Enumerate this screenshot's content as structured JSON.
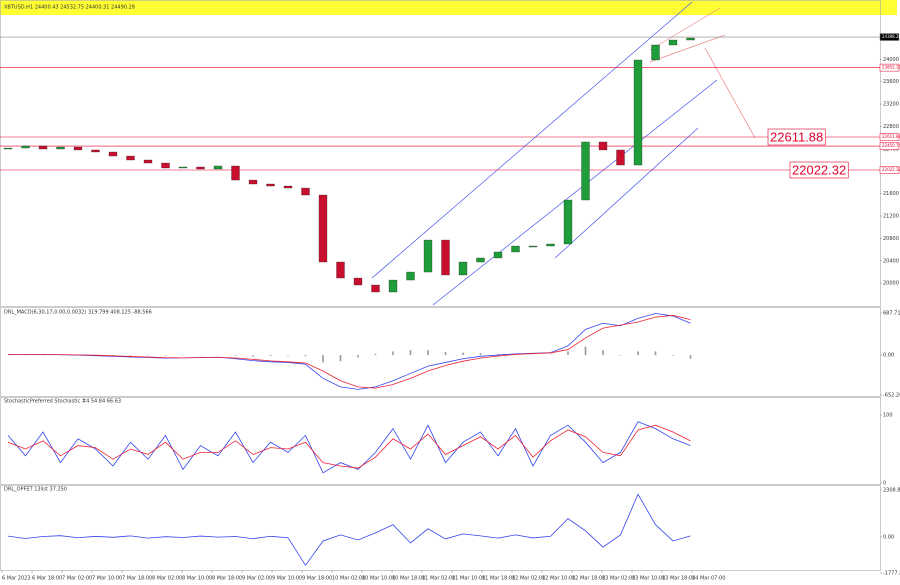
{
  "time_axis": [
    "6 Mar 2023",
    "6 Mar 18:00",
    "7 Mar 02:00",
    "7 Mar 10:00",
    "7 Mar 18:00",
    "8 Mar 02:00",
    "8 Mar 10:00",
    "8 Mar 18:00",
    "9 Mar 02:00",
    "9 Mar 10:00",
    "9 Mar 18:00",
    "10 Mar 02:00",
    "10 Mar 10:00",
    "10 Mar 18:00",
    "11 Mar 02:00",
    "11 Mar 10:00",
    "11 Mar 18:00",
    "12 Mar 02:00",
    "12 Mar 10:00",
    "12 Mar 18:00",
    "13 Mar 02:00",
    "13 Mar 10:00",
    "13 Mar 18:00",
    "14 Mar 07:00"
  ],
  "chart_data": [
    {
      "type": "candlestick",
      "title": "XBTUSD,H1 24400.43 24532.75 24400.31 24490.28",
      "open": [
        22400,
        22415,
        22451,
        22397,
        22433,
        22380,
        22344,
        22272,
        22201,
        22147,
        22058,
        22076,
        22040,
        22094,
        21843,
        21772,
        21736,
        21700,
        21575,
        20378,
        20092,
        19967,
        19842,
        20056,
        20199,
        20771,
        20146,
        20378,
        20450,
        20557,
        20664,
        20664,
        20700,
        21486,
        22523,
        22380,
        22111,
        23988,
        24256,
        24345
      ],
      "close": [
        22415,
        22451,
        22397,
        22433,
        22380,
        22344,
        22272,
        22201,
        22147,
        22058,
        22076,
        22040,
        22094,
        21843,
        21772,
        21736,
        21700,
        21575,
        20378,
        20092,
        19967,
        19842,
        20056,
        20199,
        20771,
        20146,
        20378,
        20450,
        20557,
        20664,
        20664,
        20700,
        21486,
        22523,
        22380,
        22111,
        23988,
        24256,
        24345,
        24381
      ],
      "up_color": "#1f9d3a",
      "down_color": "#c8102e",
      "ylim": [
        19610,
        24792
      ],
      "yticks": [
        20000,
        20400,
        20800,
        21200,
        21600,
        22000,
        22400,
        22800,
        23200,
        23600,
        24000,
        24400
      ],
      "levels": [
        24398.28,
        23852.19,
        22611.88,
        22450.74,
        22022.32
      ],
      "level_colors": [
        "#888888",
        "#e4002b",
        "#e4002b",
        "#e4002b",
        "#e4002b"
      ],
      "callouts": [
        22611.88,
        22022.32
      ]
    },
    {
      "type": "line",
      "title": "DRL_MACD(6,30,17,0.00,0.0032) 319.799 408.125 -88.566",
      "ylim": [
        -652.264,
        687.712
      ],
      "yticks": [
        687.712,
        {
          "value": 0,
          "label": "0.00"
        },
        -652.264
      ],
      "series": [
        {
          "style": "bar",
          "color": "#999999",
          "values": [
            -2,
            0,
            -2,
            -3,
            -4,
            -8,
            -8,
            -8,
            -8,
            -8,
            0,
            2,
            3,
            -12,
            -20,
            -15,
            -10,
            -20,
            -120,
            -100,
            -40,
            20,
            60,
            80,
            80,
            50,
            40,
            30,
            15,
            10,
            5,
            5,
            60,
            140,
            80,
            -10,
            60,
            60,
            -10,
            -60
          ]
        },
        {
          "style": "line",
          "color": "#3344ee",
          "values": [
            10,
            12,
            8,
            5,
            0,
            -10,
            -20,
            -30,
            -40,
            -50,
            -45,
            -40,
            -35,
            -60,
            -90,
            -110,
            -120,
            -150,
            -380,
            -520,
            -560,
            -520,
            -420,
            -300,
            -180,
            -120,
            -60,
            -20,
            0,
            20,
            30,
            40,
            150,
            420,
            520,
            480,
            600,
            680,
            640,
            520
          ]
        },
        {
          "style": "line",
          "color": "#ee2233",
          "values": [
            12,
            12,
            10,
            8,
            4,
            -2,
            -12,
            -22,
            -32,
            -42,
            -45,
            -42,
            -38,
            -48,
            -70,
            -95,
            -110,
            -130,
            -260,
            -420,
            -520,
            -540,
            -480,
            -380,
            -260,
            -170,
            -100,
            -50,
            -15,
            10,
            25,
            35,
            90,
            280,
            440,
            490,
            540,
            620,
            650,
            580
          ]
        }
      ]
    },
    {
      "type": "line",
      "title": "StochasticPreferred Stochastic #4 54.84 66.63",
      "ylim": [
        0,
        100
      ],
      "yticks": [
        100,
        0
      ],
      "series": [
        {
          "style": "line",
          "color": "#3344ee",
          "values": [
            70,
            40,
            75,
            30,
            65,
            50,
            25,
            60,
            35,
            70,
            20,
            55,
            40,
            75,
            30,
            60,
            45,
            70,
            15,
            30,
            20,
            45,
            80,
            35,
            85,
            30,
            60,
            75,
            40,
            80,
            25,
            70,
            85,
            60,
            30,
            45,
            90,
            80,
            65,
            55
          ]
        },
        {
          "style": "line",
          "color": "#ee2233",
          "values": [
            60,
            50,
            62,
            40,
            55,
            52,
            35,
            50,
            42,
            60,
            35,
            45,
            45,
            62,
            42,
            52,
            50,
            60,
            30,
            25,
            22,
            38,
            65,
            50,
            72,
            42,
            55,
            68,
            50,
            70,
            38,
            62,
            78,
            68,
            45,
            40,
            78,
            85,
            75,
            62
          ]
        }
      ]
    },
    {
      "type": "line",
      "title": "DRL_OPFET 13list 37.250",
      "ylim": [
        -1777.209,
        2308.89
      ],
      "yticks": [
        2308.89,
        {
          "value": 0,
          "label": "0.00"
        },
        -1777.209
      ],
      "series": [
        {
          "style": "line",
          "color": "#3344ee",
          "values": [
            40,
            -80,
            20,
            60,
            -40,
            30,
            -20,
            50,
            -60,
            10,
            -30,
            40,
            -10,
            20,
            -90,
            30,
            -40,
            -1400,
            -200,
            100,
            -150,
            200,
            600,
            -300,
            400,
            -100,
            150,
            50,
            -60,
            100,
            -50,
            30,
            900,
            300,
            -500,
            100,
            2100,
            600,
            -200,
            50
          ]
        }
      ]
    }
  ]
}
